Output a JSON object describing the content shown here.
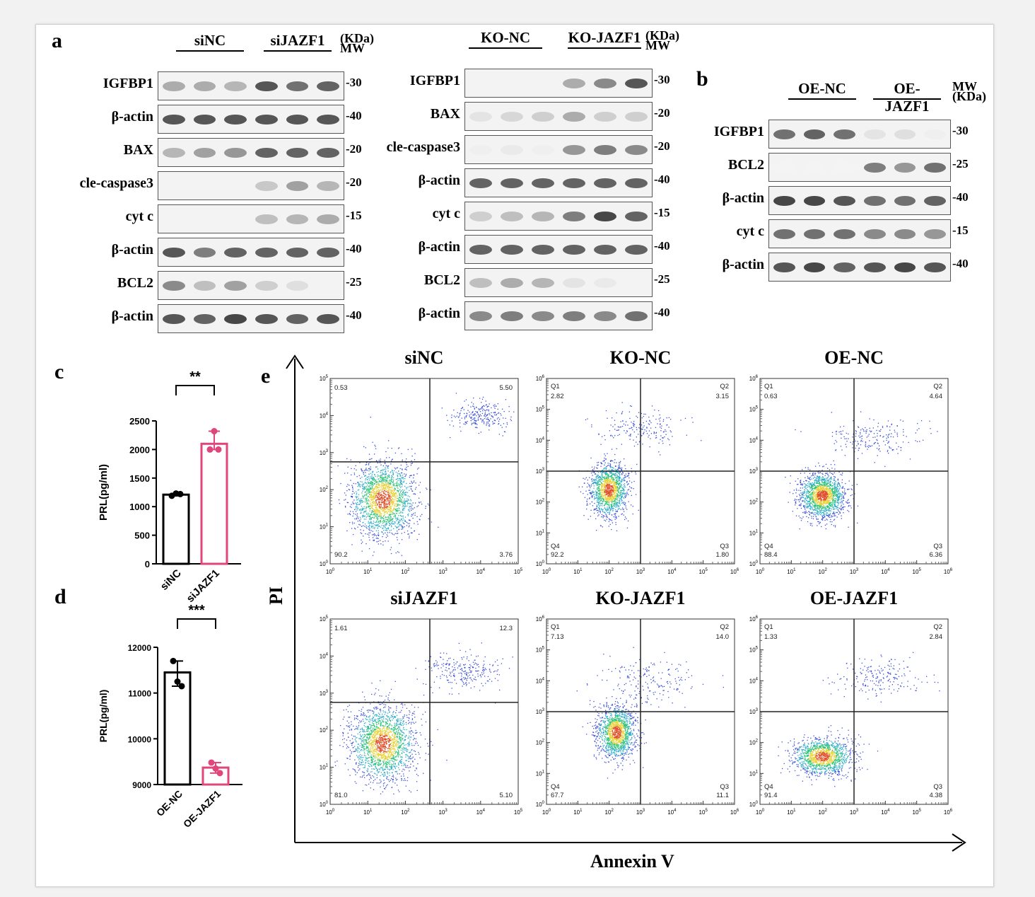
{
  "panel_letters": {
    "a": "a",
    "b": "b",
    "c": "c",
    "d": "d",
    "e": "e"
  },
  "colors": {
    "black": "#000000",
    "pink": "#e0457b"
  },
  "western_a_left": {
    "groups": [
      "siNC",
      "siJAZF1"
    ],
    "mw_header": [
      "(KDa)",
      "MW"
    ],
    "rows": [
      {
        "label": "IGFBP1",
        "mw": "-30",
        "intensity": [
          0.55,
          0.55,
          0.5,
          0.9,
          0.8,
          0.85
        ]
      },
      {
        "label": "β-actin",
        "mw": "-40",
        "intensity": [
          0.9,
          0.9,
          0.9,
          0.9,
          0.9,
          0.9
        ]
      },
      {
        "label": "BAX",
        "mw": "-20",
        "intensity": [
          0.5,
          0.6,
          0.65,
          0.85,
          0.85,
          0.85
        ]
      },
      {
        "label": "cle-caspase3",
        "mw": "-20",
        "intensity": [
          0,
          0,
          0,
          0.4,
          0.6,
          0.5
        ]
      },
      {
        "label": "cyt c",
        "mw": "-15",
        "intensity": [
          0,
          0,
          0,
          0.45,
          0.5,
          0.55
        ]
      },
      {
        "label": "β-actin",
        "mw": "-40",
        "intensity": [
          0.9,
          0.75,
          0.85,
          0.85,
          0.85,
          0.85
        ]
      },
      {
        "label": "BCL2",
        "mw": "-25",
        "intensity": [
          0.7,
          0.45,
          0.6,
          0.35,
          0.25,
          0
        ]
      },
      {
        "label": "β-actin",
        "mw": "-40",
        "intensity": [
          0.9,
          0.85,
          0.95,
          0.9,
          0.85,
          0.9
        ]
      }
    ]
  },
  "western_a_right": {
    "groups": [
      "KO-NC",
      "KO-JAZF1"
    ],
    "mw_header": [
      "(KDa)",
      "MW"
    ],
    "rows": [
      {
        "label": "IGFBP1",
        "mw": "-30",
        "intensity": [
          0,
          0,
          0,
          0.55,
          0.7,
          0.9
        ]
      },
      {
        "label": "BAX",
        "mw": "-20",
        "intensity": [
          0.2,
          0.3,
          0.35,
          0.55,
          0.35,
          0.35
        ]
      },
      {
        "label": "cle-caspase3",
        "mw": "-20",
        "intensity": [
          0.1,
          0.15,
          0.1,
          0.65,
          0.75,
          0.7
        ]
      },
      {
        "label": "β-actin",
        "mw": "-40",
        "intensity": [
          0.85,
          0.85,
          0.85,
          0.85,
          0.85,
          0.85
        ]
      },
      {
        "label": "cyt c",
        "mw": "-15",
        "intensity": [
          0.35,
          0.45,
          0.5,
          0.75,
          0.95,
          0.85
        ]
      },
      {
        "label": "β-actin",
        "mw": "-40",
        "intensity": [
          0.85,
          0.85,
          0.85,
          0.85,
          0.85,
          0.85
        ]
      },
      {
        "label": "BCL2",
        "mw": "-25",
        "intensity": [
          0.45,
          0.55,
          0.5,
          0.2,
          0.15,
          0
        ]
      },
      {
        "label": "β-actin",
        "mw": "-40",
        "intensity": [
          0.7,
          0.75,
          0.7,
          0.75,
          0.7,
          0.8
        ]
      }
    ]
  },
  "western_b": {
    "groups": [
      "OE-NC",
      "OE-JAZF1"
    ],
    "mw_header": [
      "MW",
      "(KDa)"
    ],
    "rows": [
      {
        "label": "IGFBP1",
        "mw": "-30",
        "intensity": [
          0.8,
          0.85,
          0.8,
          0.2,
          0.25,
          0.1
        ]
      },
      {
        "label": "BCL2",
        "mw": "-25",
        "intensity": [
          0.05,
          0.05,
          0.05,
          0.75,
          0.65,
          0.8
        ]
      },
      {
        "label": "β-actin",
        "mw": "-40",
        "intensity": [
          0.95,
          0.95,
          0.9,
          0.8,
          0.8,
          0.85
        ]
      },
      {
        "label": "cyt c",
        "mw": "-15",
        "intensity": [
          0.8,
          0.8,
          0.8,
          0.7,
          0.7,
          0.65
        ]
      },
      {
        "label": "β-actin",
        "mw": "-40",
        "intensity": [
          0.9,
          0.95,
          0.85,
          0.9,
          0.95,
          0.9
        ]
      }
    ]
  },
  "chart_data": [
    {
      "panel": "c",
      "type": "bar",
      "categories": [
        "siNC",
        "siJAZF1"
      ],
      "values": [
        1210,
        2100
      ],
      "points": [
        [
          1190,
          1230,
          1220
        ],
        [
          2000,
          2320,
          2000
        ]
      ],
      "ylabel": "PRL(pg/ml)",
      "ylim": [
        0,
        2500
      ],
      "yticks": [
        "0",
        "500",
        "1000",
        "1500",
        "2000",
        "2500"
      ],
      "significance": "**"
    },
    {
      "panel": "d",
      "type": "bar",
      "categories": [
        "OE-NC",
        "OE-JAZF1"
      ],
      "values": [
        11450,
        9370
      ],
      "points": [
        [
          11700,
          11250,
          11150
        ],
        [
          9480,
          9350,
          9250
        ]
      ],
      "ylabel": "PRL(pg/ml)",
      "ylim": [
        9000,
        12000
      ],
      "yticks": [
        "9000",
        "10000",
        "11000",
        "12000"
      ],
      "significance": "***"
    },
    {
      "panel": "e",
      "type": "scatter",
      "xlabel": "Annexin V",
      "ylabel": "PI",
      "plots": [
        {
          "title": "siNC",
          "quadrants": {
            "ul": "0.53",
            "ur": "5.50",
            "ll": "90.2",
            "lr": "3.76"
          },
          "xdecades": 5,
          "ydecades": 5
        },
        {
          "title": "KO-NC",
          "quadrants": {
            "ul": "2.82",
            "ur": "3.15",
            "ll": "92.2",
            "lr": "1.80"
          },
          "qnames": [
            "Q1",
            "Q2",
            "Q4",
            "Q3"
          ],
          "xdecades": 6,
          "ydecades": 6
        },
        {
          "title": "OE-NC",
          "quadrants": {
            "ul": "0.63",
            "ur": "4.64",
            "ll": "88.4",
            "lr": "6.36"
          },
          "qnames": [
            "Q1",
            "Q2",
            "Q4",
            "Q3"
          ],
          "xdecades": 6,
          "ydecades": 6
        },
        {
          "title": "siJAZF1",
          "quadrants": {
            "ul": "1.61",
            "ur": "12.3",
            "ll": "81.0",
            "lr": "5.10"
          },
          "xdecades": 5,
          "ydecades": 5
        },
        {
          "title": "KO-JAZF1",
          "quadrants": {
            "ul": "7.13",
            "ur": "14.0",
            "ll": "67.7",
            "lr": "11.1"
          },
          "qnames": [
            "Q1",
            "Q2",
            "Q4",
            "Q3"
          ],
          "xdecades": 6,
          "ydecades": 6
        },
        {
          "title": "OE-JAZF1",
          "quadrants": {
            "ul": "1.33",
            "ur": "2.84",
            "ll": "91.4",
            "lr": "4.38"
          },
          "qnames": [
            "Q1",
            "Q2",
            "Q4",
            "Q3"
          ],
          "xdecades": 6,
          "ydecades": 6
        }
      ]
    }
  ]
}
